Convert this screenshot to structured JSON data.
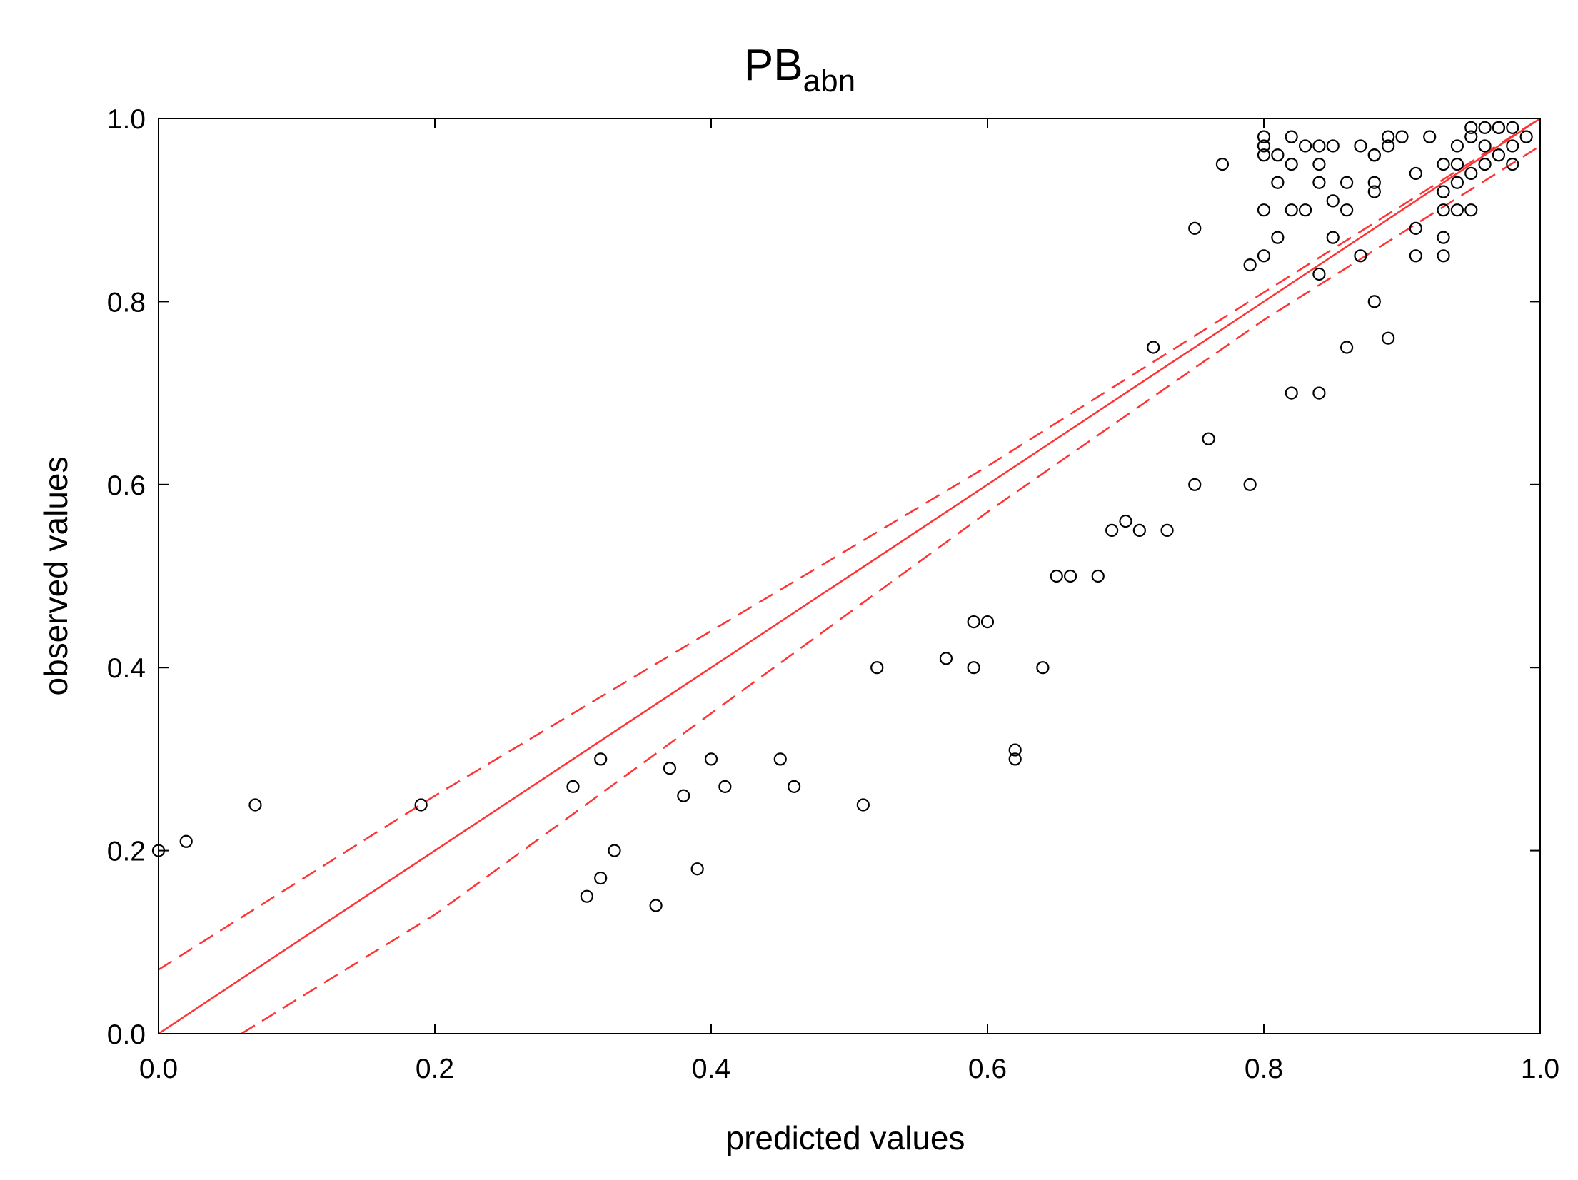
{
  "chart_data": {
    "type": "scatter",
    "title": {
      "main": "PB",
      "subscript": "abn"
    },
    "xlabel": "predicted values",
    "ylabel": "observed values",
    "xlim": [
      0,
      1
    ],
    "ylim": [
      0,
      1
    ],
    "xticks": [
      "0.0",
      "0.2",
      "0.4",
      "0.6",
      "0.8",
      "1.0"
    ],
    "yticks": [
      "0.0",
      "0.2",
      "0.4",
      "0.6",
      "0.8",
      "1.0"
    ],
    "grid": false,
    "colors": {
      "fit_line": "#ff3333",
      "points": "#000000",
      "axes": "#000000"
    },
    "fit_line": {
      "style": "solid",
      "points": [
        [
          0,
          0
        ],
        [
          1,
          1
        ]
      ]
    },
    "confidence_band": {
      "style": "dashed",
      "upper": [
        [
          0,
          0.07
        ],
        [
          0.2,
          0.26
        ],
        [
          0.4,
          0.44
        ],
        [
          0.6,
          0.62
        ],
        [
          0.8,
          0.81
        ],
        [
          1,
          1.0
        ]
      ],
      "lower": [
        [
          0.06,
          0.0
        ],
        [
          0.2,
          0.13
        ],
        [
          0.4,
          0.35
        ],
        [
          0.6,
          0.57
        ],
        [
          0.8,
          0.78
        ],
        [
          1,
          0.97
        ]
      ]
    },
    "series": [
      {
        "name": "observations",
        "marker": "open-circle",
        "points": [
          [
            0.0,
            0.2
          ],
          [
            0.02,
            0.21
          ],
          [
            0.07,
            0.25
          ],
          [
            0.19,
            0.25
          ],
          [
            0.3,
            0.27
          ],
          [
            0.31,
            0.15
          ],
          [
            0.32,
            0.17
          ],
          [
            0.32,
            0.3
          ],
          [
            0.33,
            0.2
          ],
          [
            0.36,
            0.14
          ],
          [
            0.37,
            0.29
          ],
          [
            0.38,
            0.26
          ],
          [
            0.39,
            0.18
          ],
          [
            0.4,
            0.3
          ],
          [
            0.41,
            0.27
          ],
          [
            0.45,
            0.3
          ],
          [
            0.46,
            0.27
          ],
          [
            0.51,
            0.25
          ],
          [
            0.52,
            0.4
          ],
          [
            0.57,
            0.41
          ],
          [
            0.59,
            0.45
          ],
          [
            0.59,
            0.4
          ],
          [
            0.6,
            0.45
          ],
          [
            0.62,
            0.31
          ],
          [
            0.62,
            0.3
          ],
          [
            0.64,
            0.4
          ],
          [
            0.65,
            0.5
          ],
          [
            0.66,
            0.5
          ],
          [
            0.68,
            0.5
          ],
          [
            0.69,
            0.55
          ],
          [
            0.7,
            0.56
          ],
          [
            0.71,
            0.55
          ],
          [
            0.72,
            0.75
          ],
          [
            0.73,
            0.55
          ],
          [
            0.75,
            0.6
          ],
          [
            0.75,
            0.88
          ],
          [
            0.76,
            0.65
          ],
          [
            0.77,
            0.95
          ],
          [
            0.79,
            0.6
          ],
          [
            0.79,
            0.84
          ],
          [
            0.8,
            0.85
          ],
          [
            0.8,
            0.96
          ],
          [
            0.8,
            0.97
          ],
          [
            0.8,
            0.98
          ],
          [
            0.8,
            0.9
          ],
          [
            0.81,
            0.87
          ],
          [
            0.81,
            0.96
          ],
          [
            0.81,
            0.93
          ],
          [
            0.82,
            0.95
          ],
          [
            0.82,
            0.9
          ],
          [
            0.82,
            0.98
          ],
          [
            0.82,
            0.7
          ],
          [
            0.83,
            0.97
          ],
          [
            0.83,
            0.9
          ],
          [
            0.84,
            0.95
          ],
          [
            0.84,
            0.7
          ],
          [
            0.84,
            0.93
          ],
          [
            0.84,
            0.97
          ],
          [
            0.84,
            0.83
          ],
          [
            0.85,
            0.97
          ],
          [
            0.85,
            0.91
          ],
          [
            0.85,
            0.87
          ],
          [
            0.86,
            0.9
          ],
          [
            0.86,
            0.93
          ],
          [
            0.86,
            0.75
          ],
          [
            0.87,
            0.97
          ],
          [
            0.87,
            0.85
          ],
          [
            0.88,
            0.96
          ],
          [
            0.88,
            0.92
          ],
          [
            0.88,
            0.93
          ],
          [
            0.88,
            0.8
          ],
          [
            0.88,
            0.96
          ],
          [
            0.89,
            0.76
          ],
          [
            0.89,
            0.98
          ],
          [
            0.89,
            0.97
          ],
          [
            0.9,
            0.98
          ],
          [
            0.91,
            0.94
          ],
          [
            0.91,
            0.88
          ],
          [
            0.91,
            0.85
          ],
          [
            0.92,
            0.98
          ],
          [
            0.93,
            0.87
          ],
          [
            0.93,
            0.95
          ],
          [
            0.93,
            0.92
          ],
          [
            0.93,
            0.9
          ],
          [
            0.93,
            0.85
          ],
          [
            0.94,
            0.97
          ],
          [
            0.94,
            0.95
          ],
          [
            0.94,
            0.93
          ],
          [
            0.94,
            0.9
          ],
          [
            0.95,
            0.99
          ],
          [
            0.95,
            0.94
          ],
          [
            0.95,
            0.9
          ],
          [
            0.95,
            0.98
          ],
          [
            0.96,
            0.99
          ],
          [
            0.96,
            0.97
          ],
          [
            0.96,
            0.95
          ],
          [
            0.97,
            0.99
          ],
          [
            0.97,
            0.96
          ],
          [
            0.97,
            0.99
          ],
          [
            0.97,
            0.99
          ],
          [
            0.98,
            0.95
          ],
          [
            0.98,
            0.97
          ],
          [
            0.98,
            0.99
          ],
          [
            0.99,
            0.98
          ]
        ]
      }
    ]
  }
}
